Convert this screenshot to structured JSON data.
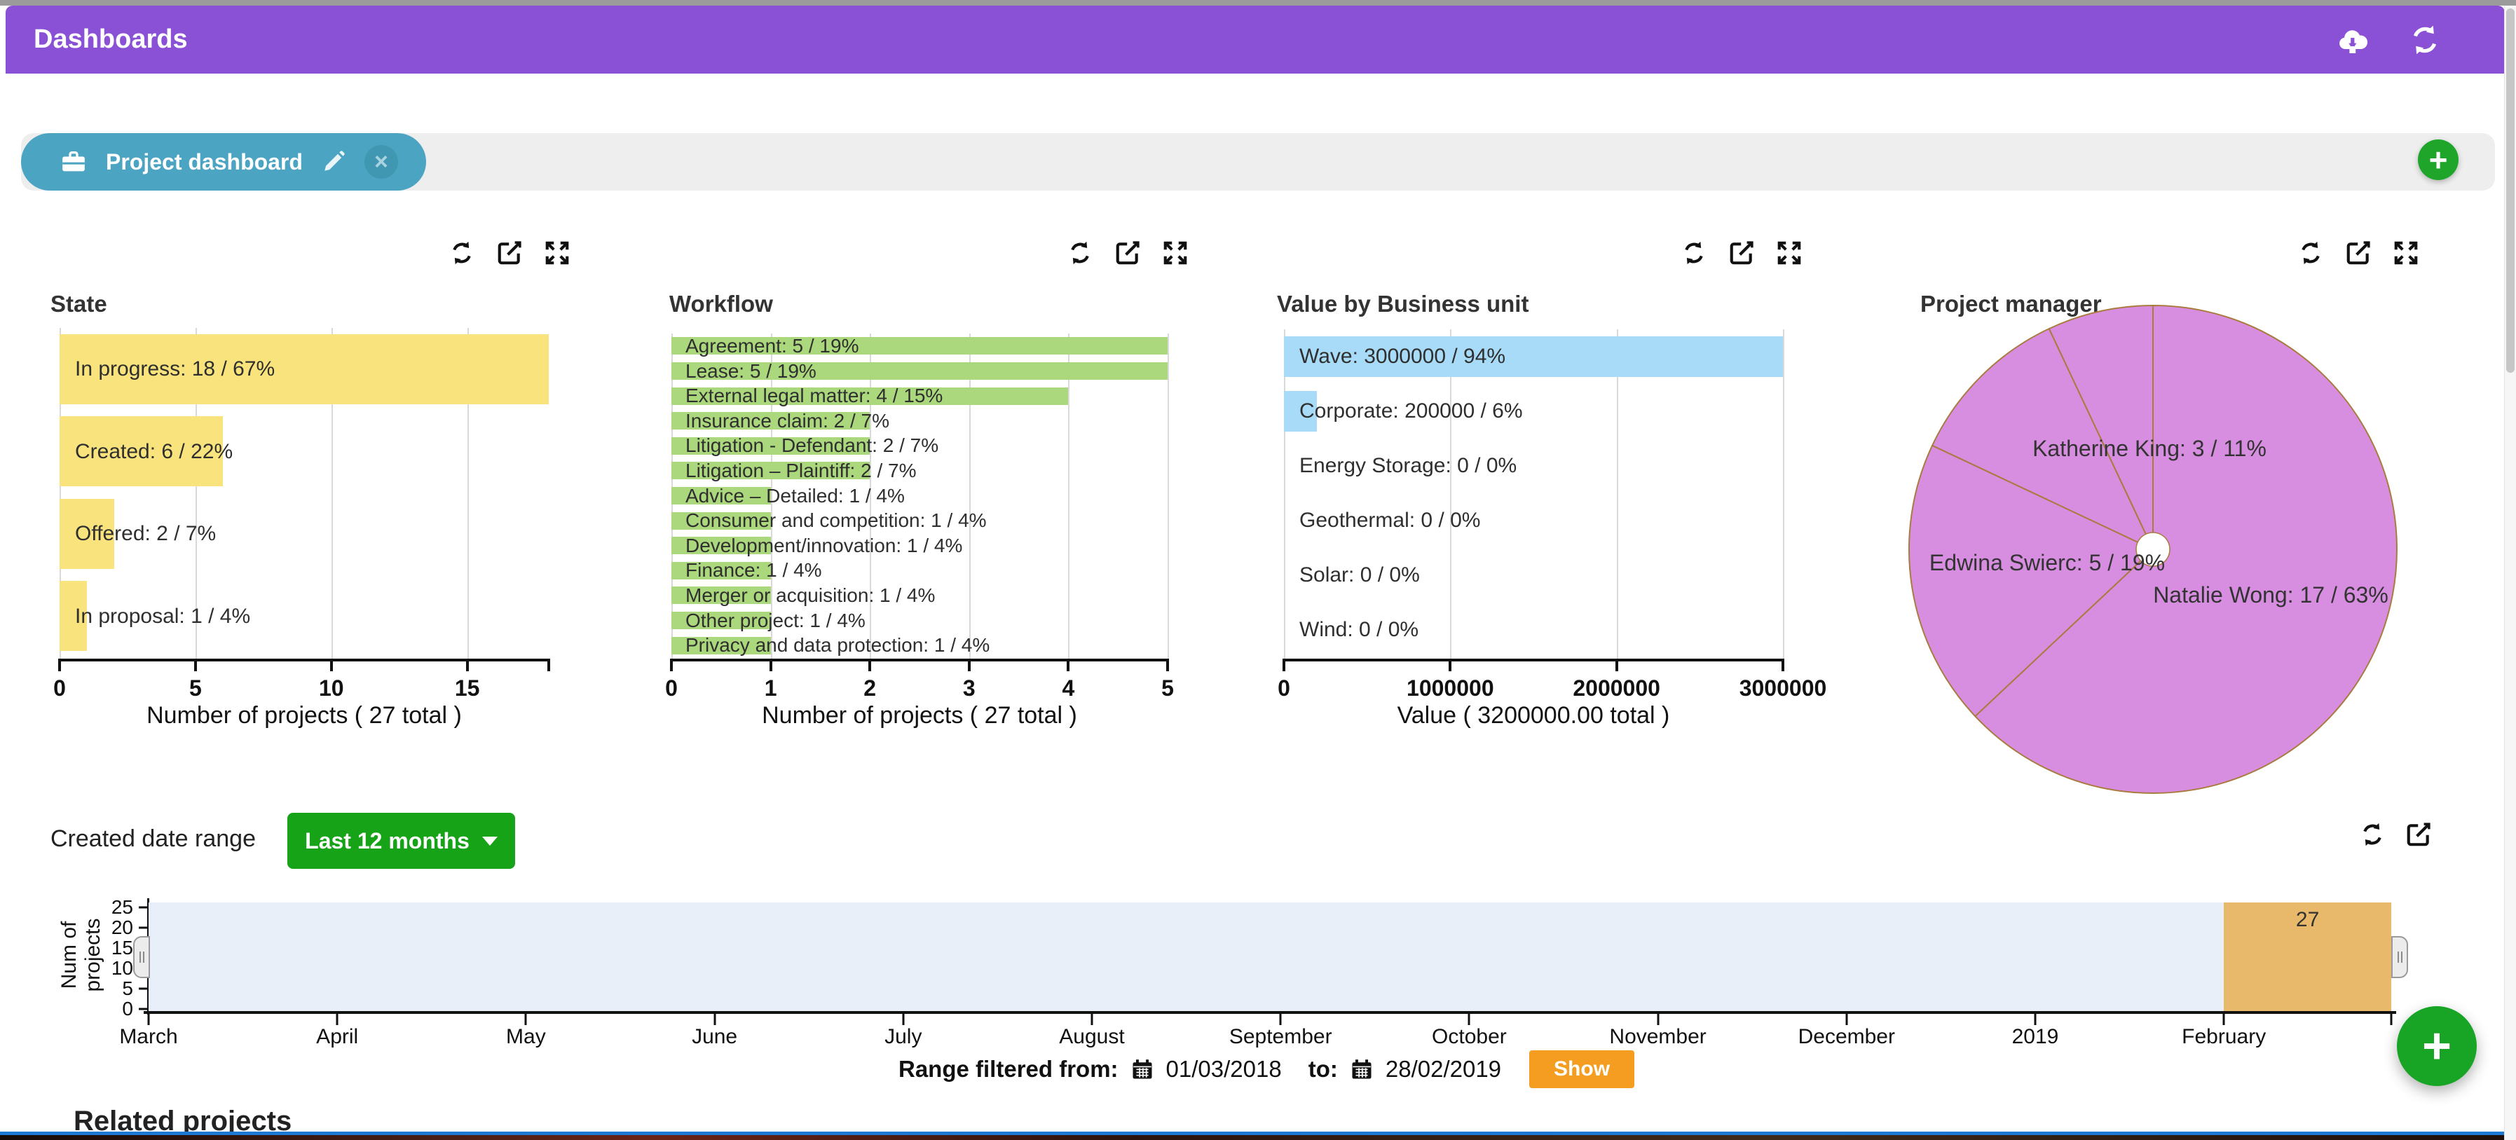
{
  "header": {
    "title": "Dashboards",
    "bg_color": "#8a51d6",
    "icons": [
      "cloud-download",
      "refresh"
    ]
  },
  "tab_bar": {
    "tab": {
      "label": "Project dashboard",
      "color": "#4ba4c2"
    },
    "add_label": "+"
  },
  "panel_icons": [
    "refresh",
    "edit",
    "expand"
  ],
  "chart_data": [
    {
      "id": "state",
      "type": "bar",
      "orientation": "horizontal",
      "title": "State",
      "xlabel": "Number of projects ( 27 total )",
      "xmax": 18,
      "bar_color": "#f8e37d",
      "ticks": [
        {
          "label": "0",
          "value": 0
        },
        {
          "label": "5",
          "value": 5
        },
        {
          "label": "10",
          "value": 10
        },
        {
          "label": "15",
          "value": 15
        }
      ],
      "points": [
        {
          "name": "In progress",
          "value": 18,
          "pct": 67
        },
        {
          "name": "Created",
          "value": 6,
          "pct": 22
        },
        {
          "name": "Offered",
          "value": 2,
          "pct": 7
        },
        {
          "name": "In proposal",
          "value": 1,
          "pct": 4
        }
      ]
    },
    {
      "id": "workflow",
      "type": "bar",
      "orientation": "horizontal",
      "title": "Workflow",
      "xlabel": "Number of projects ( 27 total )",
      "xmax": 5,
      "bar_color": "#abd77d",
      "ticks": [
        {
          "label": "0",
          "value": 0
        },
        {
          "label": "1",
          "value": 1
        },
        {
          "label": "2",
          "value": 2
        },
        {
          "label": "3",
          "value": 3
        },
        {
          "label": "4",
          "value": 4
        },
        {
          "label": "5",
          "value": 5
        }
      ],
      "points": [
        {
          "name": "Agreement",
          "value": 5,
          "pct": 19
        },
        {
          "name": "Lease",
          "value": 5,
          "pct": 19
        },
        {
          "name": "External legal matter",
          "value": 4,
          "pct": 15
        },
        {
          "name": "Insurance claim",
          "value": 2,
          "pct": 7
        },
        {
          "name": "Litigation - Defendant",
          "value": 2,
          "pct": 7
        },
        {
          "name": "Litigation – Plaintiff",
          "value": 2,
          "pct": 7
        },
        {
          "name": "Advice – Detailed",
          "value": 1,
          "pct": 4
        },
        {
          "name": "Consumer and competition",
          "value": 1,
          "pct": 4
        },
        {
          "name": "Development/innovation",
          "value": 1,
          "pct": 4
        },
        {
          "name": "Finance",
          "value": 1,
          "pct": 4
        },
        {
          "name": "Merger or acquisition",
          "value": 1,
          "pct": 4
        },
        {
          "name": "Other project",
          "value": 1,
          "pct": 4
        },
        {
          "name": "Privacy and data protection",
          "value": 1,
          "pct": 4
        }
      ]
    },
    {
      "id": "value",
      "type": "bar",
      "orientation": "horizontal",
      "title": "Value by Business unit",
      "xlabel": "Value ( 3200000.00 total )",
      "xmax": 3000000,
      "bar_color": "#a8dbf7",
      "ticks": [
        {
          "label": "0",
          "value": 0
        },
        {
          "label": "1000000",
          "value": 1000000
        },
        {
          "label": "2000000",
          "value": 2000000
        },
        {
          "label": "3000000",
          "value": 3000000
        }
      ],
      "points": [
        {
          "name": "Wave",
          "value": 3000000,
          "pct": 94
        },
        {
          "name": "Corporate",
          "value": 200000,
          "pct": 6
        },
        {
          "name": "Energy Storage",
          "value": 0,
          "pct": 0
        },
        {
          "name": "Geothermal",
          "value": 0,
          "pct": 0
        },
        {
          "name": "Solar",
          "value": 0,
          "pct": 0
        },
        {
          "name": "Wind",
          "value": 0,
          "pct": 0
        }
      ]
    },
    {
      "id": "manager",
      "type": "pie",
      "title": "Project manager",
      "fill": "#d78ee0",
      "stroke": "#aa7a3f",
      "slices": [
        {
          "name": "Natalie Wong",
          "value": 17,
          "pct": 63,
          "labeled": true
        },
        {
          "name": "Edwina Swierc",
          "value": 5,
          "pct": 19,
          "labeled": true
        },
        {
          "name": "Katherine King",
          "value": 3,
          "pct": 11,
          "labeled": true
        },
        {
          "name": "",
          "value": 2,
          "pct": 7,
          "labeled": false
        }
      ]
    },
    {
      "id": "timeline",
      "type": "bar",
      "orientation": "vertical",
      "ylabel": "Num of projects",
      "yticks": [
        "25",
        "20",
        "15",
        "10",
        "5",
        "0"
      ],
      "months": [
        "March",
        "April",
        "May",
        "June",
        "July",
        "August",
        "September",
        "October",
        "November",
        "December",
        "2019",
        "February"
      ],
      "selected_month": "February",
      "selected_count": "27",
      "bg": "#e9eff8",
      "selected_color": "#e8b96a"
    }
  ],
  "date_range": {
    "label": "Created date range",
    "dropdown_label": "Last 12 months"
  },
  "filter": {
    "prefix": "Range filtered from:",
    "from_date": "01/03/2018",
    "to_label": "to:",
    "to_date": "28/02/2019",
    "show_label": "Show"
  },
  "bottom": {
    "heading": "Related projects"
  },
  "fab": {
    "label": "+"
  },
  "colors": {
    "header_purple": "#8a51d6",
    "tab_teal": "#4ba4c2",
    "dropdown_green": "#17a317",
    "show_orange": "#f49d20",
    "fab_green": "#18a525",
    "timeline_selection": "#e8b96a"
  }
}
